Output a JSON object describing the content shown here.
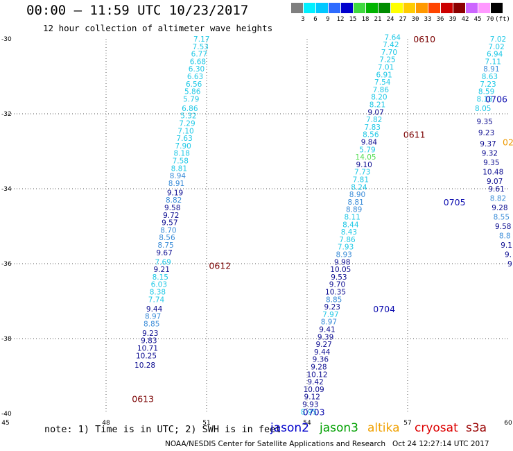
{
  "header": {
    "title": "00:00 – 11:59 UTC 10/23/2017",
    "subtitle": "12 hour collection of altimeter wave heights"
  },
  "color_scale": {
    "labels": [
      "3",
      "6",
      "9",
      "12",
      "15",
      "18",
      "21",
      "24",
      "27",
      "30",
      "33",
      "36",
      "39",
      "42",
      "45",
      "70",
      "(ft)"
    ],
    "colors": [
      "#7f7f7f",
      "#00f0ff",
      "#00c8ff",
      "#2e6bff",
      "#0000cd",
      "#3fd93f",
      "#00b400",
      "#008c00",
      "#ffff00",
      "#ffcc00",
      "#ff9900",
      "#ff4500",
      "#cc0000",
      "#8b0000",
      "#cc66ff",
      "#ff99ff",
      "#000000"
    ]
  },
  "chart_data": {
    "type": "scatter",
    "x_ticks": [
      "45",
      "48",
      "51",
      "54",
      "57",
      "60"
    ],
    "y_ticks": [
      "-30",
      "-32",
      "-34",
      "-36",
      "-38",
      "-40"
    ],
    "xlim": [
      45,
      60
    ],
    "ylim": [
      -40,
      -30
    ],
    "grid": true,
    "colors": {
      "light": "#1ec8e6",
      "mid": "#3a8cd8",
      "dark": "#0b0b90",
      "time_label": "#7a0000",
      "time_label_blue": "#1010b0",
      "green": "#55dd55",
      "orange": "#ee9900"
    },
    "time_labels": [
      {
        "text": "0610",
        "lon": 57.5,
        "lat": -30.0,
        "color": "time_label"
      },
      {
        "text": "0611",
        "lon": 57.2,
        "lat": -32.55,
        "color": "time_label"
      },
      {
        "text": "0612",
        "lon": 51.4,
        "lat": -36.05,
        "color": "time_label"
      },
      {
        "text": "0613",
        "lon": 49.1,
        "lat": -39.6,
        "color": "time_label"
      },
      {
        "text": "0703",
        "lon": 54.2,
        "lat": -39.95,
        "color": "time_label_blue"
      },
      {
        "text": "0704",
        "lon": 56.3,
        "lat": -37.2,
        "color": "time_label_blue"
      },
      {
        "text": "0705",
        "lon": 58.4,
        "lat": -34.35,
        "color": "time_label_blue"
      },
      {
        "text": "0706",
        "lon": 59.65,
        "lat": -31.6,
        "color": "time_label_blue"
      },
      {
        "text": "02",
        "lon": 60.0,
        "lat": -32.75,
        "color": "orange"
      }
    ],
    "series": [
      {
        "name": "track-1",
        "points": [
          {
            "lon": 50.85,
            "lat": -30.0,
            "v": "7.17",
            "c": "light"
          },
          {
            "lon": 50.82,
            "lat": -30.2,
            "v": "7.53",
            "c": "light"
          },
          {
            "lon": 50.78,
            "lat": -30.4,
            "v": "6.77",
            "c": "light"
          },
          {
            "lon": 50.74,
            "lat": -30.6,
            "v": "6.68",
            "c": "light"
          },
          {
            "lon": 50.7,
            "lat": -30.8,
            "v": "6.30",
            "c": "light"
          },
          {
            "lon": 50.66,
            "lat": -31.0,
            "v": "6.63",
            "c": "light"
          },
          {
            "lon": 50.62,
            "lat": -31.2,
            "v": "6.56",
            "c": "light"
          },
          {
            "lon": 50.58,
            "lat": -31.4,
            "v": "5.86",
            "c": "light"
          },
          {
            "lon": 50.54,
            "lat": -31.6,
            "v": "5.79",
            "c": "light"
          },
          {
            "lon": 50.5,
            "lat": -31.85,
            "v": "6.86",
            "c": "light"
          },
          {
            "lon": 50.46,
            "lat": -32.05,
            "v": "5.32",
            "c": "light"
          },
          {
            "lon": 50.42,
            "lat": -32.25,
            "v": "7.29",
            "c": "light"
          },
          {
            "lon": 50.38,
            "lat": -32.45,
            "v": "7.10",
            "c": "light"
          },
          {
            "lon": 50.34,
            "lat": -32.65,
            "v": "7.63",
            "c": "light"
          },
          {
            "lon": 50.3,
            "lat": -32.85,
            "v": "7.90",
            "c": "light"
          },
          {
            "lon": 50.26,
            "lat": -33.05,
            "v": "8.18",
            "c": "light"
          },
          {
            "lon": 50.22,
            "lat": -33.25,
            "v": "7.58",
            "c": "light"
          },
          {
            "lon": 50.18,
            "lat": -33.45,
            "v": "8.81",
            "c": "light"
          },
          {
            "lon": 50.14,
            "lat": -33.65,
            "v": "8.94",
            "c": "mid"
          },
          {
            "lon": 50.1,
            "lat": -33.85,
            "v": "8.91",
            "c": "mid"
          },
          {
            "lon": 50.06,
            "lat": -34.1,
            "v": "9.19",
            "c": "dark"
          },
          {
            "lon": 50.02,
            "lat": -34.3,
            "v": "8.82",
            "c": "mid"
          },
          {
            "lon": 49.98,
            "lat": -34.5,
            "v": "9.58",
            "c": "dark"
          },
          {
            "lon": 49.94,
            "lat": -34.7,
            "v": "9.72",
            "c": "dark"
          },
          {
            "lon": 49.9,
            "lat": -34.9,
            "v": "9.57",
            "c": "dark"
          },
          {
            "lon": 49.86,
            "lat": -35.1,
            "v": "8.70",
            "c": "mid"
          },
          {
            "lon": 49.82,
            "lat": -35.3,
            "v": "8.56",
            "c": "mid"
          },
          {
            "lon": 49.78,
            "lat": -35.5,
            "v": "8.75",
            "c": "mid"
          },
          {
            "lon": 49.74,
            "lat": -35.7,
            "v": "9.67",
            "c": "dark"
          },
          {
            "lon": 49.7,
            "lat": -35.95,
            "v": "7.69",
            "c": "light"
          },
          {
            "lon": 49.66,
            "lat": -36.15,
            "v": "9.21",
            "c": "dark"
          },
          {
            "lon": 49.62,
            "lat": -36.35,
            "v": "8.15",
            "c": "light"
          },
          {
            "lon": 49.58,
            "lat": -36.55,
            "v": "6.03",
            "c": "light"
          },
          {
            "lon": 49.54,
            "lat": -36.75,
            "v": "8.38",
            "c": "light"
          },
          {
            "lon": 49.5,
            "lat": -36.95,
            "v": "7.74",
            "c": "light"
          },
          {
            "lon": 49.44,
            "lat": -37.2,
            "v": "9.44",
            "c": "dark"
          },
          {
            "lon": 49.4,
            "lat": -37.4,
            "v": "8.97",
            "c": "mid"
          },
          {
            "lon": 49.36,
            "lat": -37.6,
            "v": "8.85",
            "c": "mid"
          },
          {
            "lon": 49.32,
            "lat": -37.85,
            "v": "9.23",
            "c": "dark"
          },
          {
            "lon": 49.28,
            "lat": -38.05,
            "v": "9.83",
            "c": "dark"
          },
          {
            "lon": 49.24,
            "lat": -38.25,
            "v": "10.71",
            "c": "dark"
          },
          {
            "lon": 49.2,
            "lat": -38.45,
            "v": "10.25",
            "c": "dark"
          },
          {
            "lon": 49.16,
            "lat": -38.7,
            "v": "10.28",
            "c": "dark"
          }
        ]
      },
      {
        "name": "track-2",
        "points": [
          {
            "lon": 54.05,
            "lat": -39.95,
            "v": "8.95",
            "c": "light"
          },
          {
            "lon": 54.1,
            "lat": -39.75,
            "v": "9.93",
            "c": "dark"
          },
          {
            "lon": 54.15,
            "lat": -39.55,
            "v": "9.12",
            "c": "dark"
          },
          {
            "lon": 54.2,
            "lat": -39.35,
            "v": "10.09",
            "c": "dark"
          },
          {
            "lon": 54.25,
            "lat": -39.15,
            "v": "9.42",
            "c": "dark"
          },
          {
            "lon": 54.3,
            "lat": -38.95,
            "v": "10.12",
            "c": "dark"
          },
          {
            "lon": 54.35,
            "lat": -38.75,
            "v": "9.28",
            "c": "dark"
          },
          {
            "lon": 54.4,
            "lat": -38.55,
            "v": "9.36",
            "c": "dark"
          },
          {
            "lon": 54.45,
            "lat": -38.35,
            "v": "9.44",
            "c": "dark"
          },
          {
            "lon": 54.5,
            "lat": -38.15,
            "v": "9.27",
            "c": "dark"
          },
          {
            "lon": 54.55,
            "lat": -37.95,
            "v": "9.39",
            "c": "dark"
          },
          {
            "lon": 54.6,
            "lat": -37.75,
            "v": "9.41",
            "c": "dark"
          },
          {
            "lon": 54.65,
            "lat": -37.55,
            "v": "8.97",
            "c": "mid"
          },
          {
            "lon": 54.7,
            "lat": -37.35,
            "v": "7.97",
            "c": "light"
          },
          {
            "lon": 54.75,
            "lat": -37.15,
            "v": "9.23",
            "c": "dark"
          },
          {
            "lon": 54.8,
            "lat": -36.95,
            "v": "8.85",
            "c": "mid"
          },
          {
            "lon": 54.85,
            "lat": -36.75,
            "v": "10.35",
            "c": "dark"
          },
          {
            "lon": 54.9,
            "lat": -36.55,
            "v": "9.70",
            "c": "dark"
          },
          {
            "lon": 54.95,
            "lat": -36.35,
            "v": "9.53",
            "c": "dark"
          },
          {
            "lon": 55.0,
            "lat": -36.15,
            "v": "10.05",
            "c": "dark"
          },
          {
            "lon": 55.05,
            "lat": -35.95,
            "v": "9.98",
            "c": "dark"
          },
          {
            "lon": 55.1,
            "lat": -35.75,
            "v": "8.93",
            "c": "mid"
          },
          {
            "lon": 55.15,
            "lat": -35.55,
            "v": "7.93",
            "c": "light"
          },
          {
            "lon": 55.2,
            "lat": -35.35,
            "v": "7.86",
            "c": "light"
          },
          {
            "lon": 55.25,
            "lat": -35.15,
            "v": "8.43",
            "c": "light"
          },
          {
            "lon": 55.3,
            "lat": -34.95,
            "v": "8.44",
            "c": "light"
          },
          {
            "lon": 55.35,
            "lat": -34.75,
            "v": "8.11",
            "c": "light"
          },
          {
            "lon": 55.4,
            "lat": -34.55,
            "v": "8.89",
            "c": "mid"
          },
          {
            "lon": 55.45,
            "lat": -34.35,
            "v": "8.81",
            "c": "mid"
          },
          {
            "lon": 55.5,
            "lat": -34.15,
            "v": "8.90",
            "c": "mid"
          },
          {
            "lon": 55.55,
            "lat": -33.95,
            "v": "8.24",
            "c": "light"
          },
          {
            "lon": 55.6,
            "lat": -33.75,
            "v": "7.81",
            "c": "light"
          },
          {
            "lon": 55.65,
            "lat": -33.55,
            "v": "7.73",
            "c": "light"
          },
          {
            "lon": 55.7,
            "lat": -33.35,
            "v": "9.10",
            "c": "dark"
          },
          {
            "lon": 55.75,
            "lat": -33.15,
            "v": "14.05",
            "c": "green"
          },
          {
            "lon": 55.8,
            "lat": -32.95,
            "v": "5.79",
            "c": "light"
          },
          {
            "lon": 55.85,
            "lat": -32.75,
            "v": "9.84",
            "c": "dark"
          },
          {
            "lon": 55.9,
            "lat": -32.55,
            "v": "8.56",
            "c": "light"
          },
          {
            "lon": 55.95,
            "lat": -32.35,
            "v": "7.83",
            "c": "light"
          },
          {
            "lon": 56.0,
            "lat": -32.15,
            "v": "7.82",
            "c": "light"
          },
          {
            "lon": 56.05,
            "lat": -31.95,
            "v": "9.07",
            "c": "dark"
          },
          {
            "lon": 56.1,
            "lat": -31.75,
            "v": "8.21",
            "c": "light"
          },
          {
            "lon": 56.15,
            "lat": -31.55,
            "v": "8.20",
            "c": "light"
          },
          {
            "lon": 56.2,
            "lat": -31.35,
            "v": "7.86",
            "c": "light"
          },
          {
            "lon": 56.25,
            "lat": -31.15,
            "v": "7.54",
            "c": "light"
          },
          {
            "lon": 56.3,
            "lat": -30.95,
            "v": "6.91",
            "c": "light"
          },
          {
            "lon": 56.35,
            "lat": -30.75,
            "v": "7.01",
            "c": "light"
          },
          {
            "lon": 56.4,
            "lat": -30.55,
            "v": "7.25",
            "c": "light"
          },
          {
            "lon": 56.45,
            "lat": -30.35,
            "v": "7.70",
            "c": "light"
          },
          {
            "lon": 56.5,
            "lat": -30.15,
            "v": "7.42",
            "c": "light"
          },
          {
            "lon": 56.55,
            "lat": -29.95,
            "v": "7.64",
            "c": "light"
          }
        ]
      },
      {
        "name": "track-3",
        "points": [
          {
            "lon": 59.7,
            "lat": -30.0,
            "v": "7.02",
            "c": "light"
          },
          {
            "lon": 59.65,
            "lat": -30.2,
            "v": "7.02",
            "c": "light"
          },
          {
            "lon": 59.6,
            "lat": -30.4,
            "v": "6.94",
            "c": "light"
          },
          {
            "lon": 59.55,
            "lat": -30.6,
            "v": "7.11",
            "c": "light"
          },
          {
            "lon": 59.5,
            "lat": -30.8,
            "v": "8.91",
            "c": "mid"
          },
          {
            "lon": 59.45,
            "lat": -31.0,
            "v": "8.63",
            "c": "light"
          },
          {
            "lon": 59.4,
            "lat": -31.2,
            "v": "7.23",
            "c": "light"
          },
          {
            "lon": 59.35,
            "lat": -31.4,
            "v": "8.59",
            "c": "light"
          },
          {
            "lon": 59.3,
            "lat": -31.6,
            "v": "8.18",
            "c": "light"
          },
          {
            "lon": 59.25,
            "lat": -31.85,
            "v": "8.05",
            "c": "light"
          },
          {
            "lon": 59.3,
            "lat": -32.2,
            "v": "9.35",
            "c": "dark"
          },
          {
            "lon": 59.35,
            "lat": -32.5,
            "v": "9.23",
            "c": "dark"
          },
          {
            "lon": 59.4,
            "lat": -32.8,
            "v": "9.37",
            "c": "dark"
          },
          {
            "lon": 59.45,
            "lat": -33.05,
            "v": "9.32",
            "c": "dark"
          },
          {
            "lon": 59.5,
            "lat": -33.3,
            "v": "9.35",
            "c": "dark"
          },
          {
            "lon": 59.55,
            "lat": -33.55,
            "v": "10.48",
            "c": "dark"
          },
          {
            "lon": 59.6,
            "lat": -33.8,
            "v": "9.07",
            "c": "dark"
          },
          {
            "lon": 59.65,
            "lat": -34.0,
            "v": "9.61",
            "c": "dark"
          },
          {
            "lon": 59.7,
            "lat": -34.25,
            "v": "8.82",
            "c": "mid"
          },
          {
            "lon": 59.75,
            "lat": -34.5,
            "v": "9.28",
            "c": "dark"
          },
          {
            "lon": 59.8,
            "lat": -34.75,
            "v": "8.55",
            "c": "mid"
          },
          {
            "lon": 59.85,
            "lat": -35.0,
            "v": "9.58",
            "c": "dark"
          },
          {
            "lon": 59.9,
            "lat": -35.25,
            "v": "8.8",
            "c": "mid"
          },
          {
            "lon": 59.95,
            "lat": -35.5,
            "v": "9.1",
            "c": "dark"
          },
          {
            "lon": 60.0,
            "lat": -35.75,
            "v": "9.",
            "c": "dark"
          },
          {
            "lon": 60.05,
            "lat": -36.0,
            "v": "9",
            "c": "dark"
          }
        ]
      }
    ]
  },
  "note": "note: 1) Time is in UTC; 2) SWH is in feet",
  "satellites": [
    {
      "name": "jason2",
      "color": "#0000cc"
    },
    {
      "name": "jason3",
      "color": "#00a000"
    },
    {
      "name": "altika",
      "color": "#f0a000"
    },
    {
      "name": "cryosat",
      "color": "#dd0000"
    },
    {
      "name": "s3a",
      "color": "#990000"
    }
  ],
  "footer": "NOAA/NESDIS Center for Satellite Applications and Research   Oct 24 12:27:14 UTC 2017"
}
